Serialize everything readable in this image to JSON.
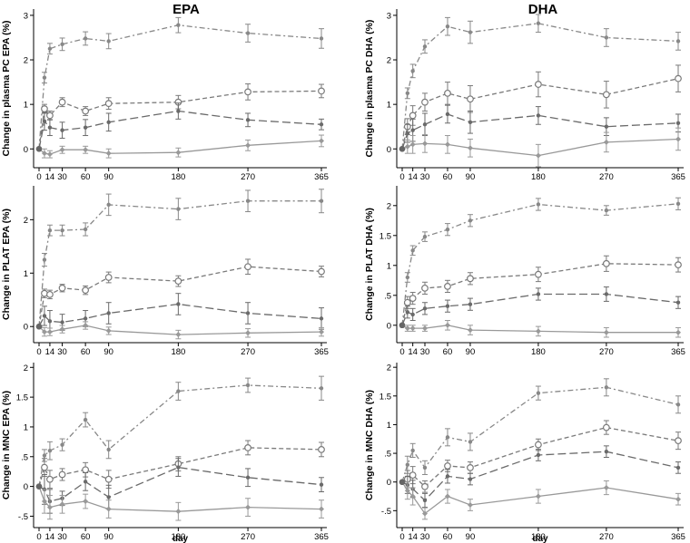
{
  "columns": [
    "EPA",
    "DHA"
  ],
  "x_ticks": [
    0,
    14,
    30,
    60,
    90,
    180,
    270,
    365
  ],
  "xlabel": "day",
  "colors": {
    "axis": "#000000",
    "s1": "#888888",
    "s2": "#7a7a7a",
    "s3": "#6a6a6a",
    "s4": "#999999"
  },
  "chart_data": [
    {
      "type": "line",
      "ylabel": "Change in plasma PC EPA (%)",
      "ylim": [
        -0.3,
        3.1
      ],
      "yticks": [
        0,
        1,
        2,
        3
      ],
      "x": [
        0,
        7,
        14,
        30,
        60,
        90,
        180,
        270,
        365
      ],
      "series": [
        {
          "style": "dash-dot",
          "marker": "dot",
          "values": [
            0,
            1.6,
            2.25,
            2.35,
            2.48,
            2.42,
            2.78,
            2.6,
            2.48
          ],
          "err": [
            0.05,
            0.12,
            0.12,
            0.14,
            0.15,
            0.17,
            0.17,
            0.2,
            0.22
          ]
        },
        {
          "style": "dashed",
          "marker": "circle",
          "values": [
            0,
            0.9,
            0.75,
            1.05,
            0.85,
            1.02,
            1.05,
            1.28,
            1.3
          ],
          "err": [
            0.05,
            0.1,
            0.1,
            0.1,
            0.1,
            0.13,
            0.15,
            0.18,
            0.15
          ]
        },
        {
          "style": "longdash",
          "marker": "dot",
          "values": [
            0,
            0.62,
            0.48,
            0.42,
            0.48,
            0.6,
            0.85,
            0.65,
            0.55
          ],
          "err": [
            0.05,
            0.2,
            0.18,
            0.18,
            0.18,
            0.2,
            0.18,
            0.15,
            0.12
          ]
        },
        {
          "style": "solid",
          "marker": "diamond",
          "values": [
            0,
            -0.1,
            -0.12,
            -0.02,
            -0.02,
            -0.1,
            -0.08,
            0.08,
            0.18
          ],
          "err": [
            0.05,
            0.1,
            0.08,
            0.08,
            0.08,
            0.1,
            0.1,
            0.12,
            0.13
          ]
        }
      ]
    },
    {
      "type": "line",
      "ylabel": "Change in plasma PC DHA (%)",
      "ylim": [
        -0.3,
        3.1
      ],
      "yticks": [
        0,
        1,
        2,
        3
      ],
      "x": [
        0,
        7,
        14,
        30,
        60,
        90,
        180,
        270,
        365
      ],
      "series": [
        {
          "style": "dash-dot",
          "marker": "dot",
          "values": [
            0,
            1.25,
            1.75,
            2.3,
            2.75,
            2.62,
            2.82,
            2.5,
            2.42
          ],
          "err": [
            0.05,
            0.12,
            0.15,
            0.15,
            0.2,
            0.25,
            0.2,
            0.2,
            0.2
          ]
        },
        {
          "style": "dashed",
          "marker": "circle",
          "values": [
            0,
            0.5,
            0.75,
            1.05,
            1.25,
            1.12,
            1.45,
            1.22,
            1.58
          ],
          "err": [
            0.05,
            0.18,
            0.22,
            0.2,
            0.25,
            0.3,
            0.28,
            0.3,
            0.3
          ]
        },
        {
          "style": "longdash",
          "marker": "dot",
          "values": [
            0,
            0.35,
            0.42,
            0.55,
            0.78,
            0.6,
            0.75,
            0.5,
            0.58
          ],
          "err": [
            0.05,
            0.2,
            0.25,
            0.25,
            0.2,
            0.25,
            0.2,
            0.2,
            0.2
          ]
        },
        {
          "style": "solid",
          "marker": "diamond",
          "values": [
            0,
            0.05,
            0.1,
            0.12,
            0.1,
            0.02,
            -0.15,
            0.15,
            0.22
          ],
          "err": [
            0.05,
            0.15,
            0.2,
            0.2,
            0.2,
            0.2,
            0.25,
            0.22,
            0.25
          ]
        }
      ]
    },
    {
      "type": "line",
      "ylabel": "Change in PLAT EPA (%)",
      "ylim": [
        -0.2,
        2.6
      ],
      "yticks": [
        0,
        1,
        2
      ],
      "x": [
        0,
        7,
        14,
        30,
        60,
        90,
        180,
        270,
        365
      ],
      "series": [
        {
          "style": "dash-dot",
          "marker": "dot",
          "values": [
            0,
            1.25,
            1.8,
            1.8,
            1.82,
            2.28,
            2.2,
            2.35,
            2.35
          ],
          "err": [
            0.05,
            0.12,
            0.1,
            0.1,
            0.12,
            0.2,
            0.2,
            0.2,
            0.22
          ]
        },
        {
          "style": "dashed",
          "marker": "circle",
          "values": [
            0,
            0.62,
            0.6,
            0.72,
            0.68,
            0.92,
            0.85,
            1.12,
            1.03
          ],
          "err": [
            0.05,
            0.08,
            0.08,
            0.07,
            0.08,
            0.1,
            0.1,
            0.14,
            0.1
          ]
        },
        {
          "style": "longdash",
          "marker": "dot",
          "values": [
            0,
            0.2,
            0.1,
            0.08,
            0.15,
            0.25,
            0.42,
            0.25,
            0.15
          ],
          "err": [
            0.05,
            0.18,
            0.2,
            0.15,
            0.15,
            0.2,
            0.2,
            0.2,
            0.2
          ]
        },
        {
          "style": "solid",
          "marker": "diamond",
          "values": [
            0,
            -0.1,
            -0.1,
            -0.05,
            0.02,
            -0.08,
            -0.15,
            -0.12,
            -0.1
          ],
          "err": [
            0.05,
            0.08,
            0.07,
            0.07,
            0.07,
            0.07,
            0.08,
            0.08,
            0.08
          ]
        }
      ]
    },
    {
      "type": "line",
      "ylabel": "Change in PLAT DHA (%)",
      "ylim": [
        -0.2,
        2.3
      ],
      "yticks": [
        0,
        0.5,
        1,
        1.5,
        2
      ],
      "ytick_labels": [
        "0",
        ".5",
        "1",
        "1.5",
        "2"
      ],
      "x": [
        0,
        7,
        14,
        30,
        60,
        90,
        180,
        270,
        365
      ],
      "series": [
        {
          "style": "dash-dot",
          "marker": "dot",
          "values": [
            0,
            0.8,
            1.25,
            1.48,
            1.6,
            1.75,
            2.02,
            1.92,
            2.03
          ],
          "err": [
            0.05,
            0.08,
            0.08,
            0.08,
            0.1,
            0.1,
            0.1,
            0.08,
            0.1
          ]
        },
        {
          "style": "dashed",
          "marker": "circle",
          "values": [
            0,
            0.38,
            0.45,
            0.62,
            0.65,
            0.78,
            0.85,
            1.03,
            1.01
          ],
          "err": [
            0.05,
            0.1,
            0.1,
            0.1,
            0.1,
            0.1,
            0.12,
            0.13,
            0.12
          ]
        },
        {
          "style": "longdash",
          "marker": "dot",
          "values": [
            0,
            0.22,
            0.18,
            0.28,
            0.32,
            0.35,
            0.52,
            0.52,
            0.38
          ],
          "err": [
            0.05,
            0.1,
            0.1,
            0.1,
            0.1,
            0.1,
            0.1,
            0.12,
            0.1
          ]
        },
        {
          "style": "solid",
          "marker": "diamond",
          "values": [
            0,
            -0.05,
            -0.05,
            -0.05,
            0.0,
            -0.08,
            -0.1,
            -0.12,
            -0.12
          ],
          "err": [
            0.05,
            0.05,
            0.05,
            0.05,
            0.08,
            0.08,
            0.08,
            0.08,
            0.08
          ]
        }
      ]
    },
    {
      "type": "line",
      "ylabel": "Change in MNC EPA (%)",
      "ylim": [
        -0.6,
        2.05
      ],
      "yticks": [
        -0.5,
        0,
        0.5,
        1,
        1.5,
        2
      ],
      "ytick_labels": [
        "-.5",
        "0",
        ".5",
        "1",
        "1.5",
        "2"
      ],
      "x": [
        0,
        7,
        14,
        30,
        60,
        90,
        180,
        270,
        365
      ],
      "series": [
        {
          "style": "dash-dot",
          "marker": "dot",
          "values": [
            0,
            0.52,
            0.6,
            0.7,
            1.12,
            0.62,
            1.6,
            1.7,
            1.65
          ],
          "err": [
            0.05,
            0.1,
            0.15,
            0.1,
            0.12,
            0.15,
            0.15,
            0.12,
            0.2
          ]
        },
        {
          "style": "dashed",
          "marker": "circle",
          "values": [
            0,
            0.32,
            0.12,
            0.2,
            0.28,
            0.12,
            0.38,
            0.65,
            0.62
          ],
          "err": [
            0.05,
            0.15,
            0.15,
            0.1,
            0.12,
            0.15,
            0.12,
            0.12,
            0.12
          ]
        },
        {
          "style": "longdash",
          "marker": "dot",
          "values": [
            0,
            -0.05,
            -0.25,
            -0.2,
            0.08,
            -0.18,
            0.32,
            0.15,
            0.03
          ],
          "err": [
            0.05,
            0.25,
            0.2,
            0.12,
            0.15,
            0.2,
            0.15,
            0.15,
            0.12
          ]
        },
        {
          "style": "solid",
          "marker": "diamond",
          "values": [
            0,
            -0.25,
            -0.35,
            -0.3,
            -0.25,
            -0.38,
            -0.42,
            -0.35,
            -0.38
          ],
          "err": [
            0.05,
            0.2,
            0.2,
            0.15,
            0.12,
            0.15,
            0.15,
            0.15,
            0.15
          ]
        }
      ]
    },
    {
      "type": "line",
      "ylabel": "Change in  MNC DHA (%)",
      "ylim": [
        -0.7,
        2.05
      ],
      "yticks": [
        -0.5,
        0,
        0.5,
        1,
        1.5,
        2
      ],
      "ytick_labels": [
        "-.5",
        "0",
        ".5",
        "1",
        "1.5",
        "2"
      ],
      "x": [
        0,
        7,
        14,
        30,
        60,
        90,
        180,
        270,
        365
      ],
      "series": [
        {
          "style": "dash-dot",
          "marker": "dot",
          "values": [
            0,
            0.3,
            0.55,
            0.25,
            0.78,
            0.7,
            1.55,
            1.65,
            1.35
          ],
          "err": [
            0.05,
            0.15,
            0.12,
            0.12,
            0.15,
            0.15,
            0.12,
            0.15,
            0.15
          ]
        },
        {
          "style": "dashed",
          "marker": "circle",
          "values": [
            0,
            0.05,
            0.12,
            -0.08,
            0.28,
            0.25,
            0.65,
            0.95,
            0.72
          ],
          "err": [
            0.05,
            0.15,
            0.15,
            0.1,
            0.1,
            0.1,
            0.1,
            0.12,
            0.15
          ]
        },
        {
          "style": "longdash",
          "marker": "dot",
          "values": [
            0,
            -0.05,
            -0.12,
            -0.32,
            0.1,
            0.05,
            0.47,
            0.53,
            0.25
          ],
          "err": [
            0.05,
            0.15,
            0.15,
            0.12,
            0.12,
            0.1,
            0.1,
            0.1,
            0.1
          ]
        },
        {
          "style": "solid",
          "marker": "diamond",
          "values": [
            0,
            -0.15,
            -0.25,
            -0.55,
            -0.25,
            -0.4,
            -0.25,
            -0.1,
            -0.3
          ],
          "err": [
            0.05,
            0.15,
            0.15,
            0.1,
            0.12,
            0.1,
            0.12,
            0.12,
            0.1
          ]
        }
      ]
    }
  ]
}
